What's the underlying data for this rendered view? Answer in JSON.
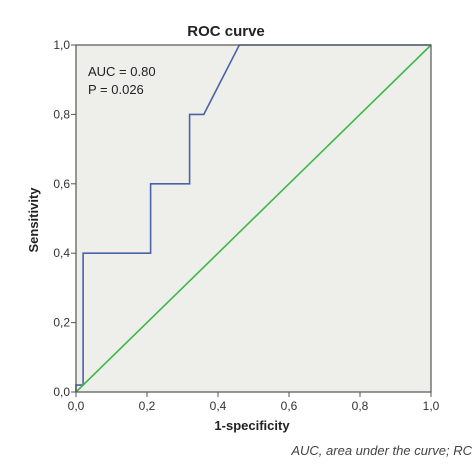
{
  "chart_data": {
    "type": "line",
    "title": "ROC curve",
    "xlabel": "1-specificity",
    "ylabel": "Sensitivity",
    "xlim": [
      0,
      1
    ],
    "ylim": [
      0,
      1
    ],
    "x_ticks": [
      "0,0",
      "0,2",
      "0,4",
      "0,6",
      "0,8",
      "1,0"
    ],
    "y_ticks": [
      "0,0",
      "0,2",
      "0,4",
      "0,6",
      "0,8",
      "1,0"
    ],
    "grid": false,
    "series": [
      {
        "x": [
          0.0,
          0.0,
          0.02,
          0.02,
          0.21,
          0.21,
          0.32,
          0.32,
          0.34,
          0.36,
          0.46,
          1.0
        ],
        "y": [
          0.0,
          0.02,
          0.02,
          0.4,
          0.4,
          0.6,
          0.6,
          0.8,
          0.8,
          0.8,
          1.0,
          1.0
        ],
        "color": "#4a63a8"
      },
      {
        "x": [
          0.0,
          1.0
        ],
        "y": [
          0.0,
          1.0
        ],
        "color": "#3cb84a"
      }
    ],
    "annotations": {
      "auc": "AUC = 0.80",
      "p": "P = 0.026"
    },
    "caption": "AUC, area under the curve; RC",
    "colors": {
      "plot_background": "#eeefea",
      "frame": "#555555"
    }
  }
}
